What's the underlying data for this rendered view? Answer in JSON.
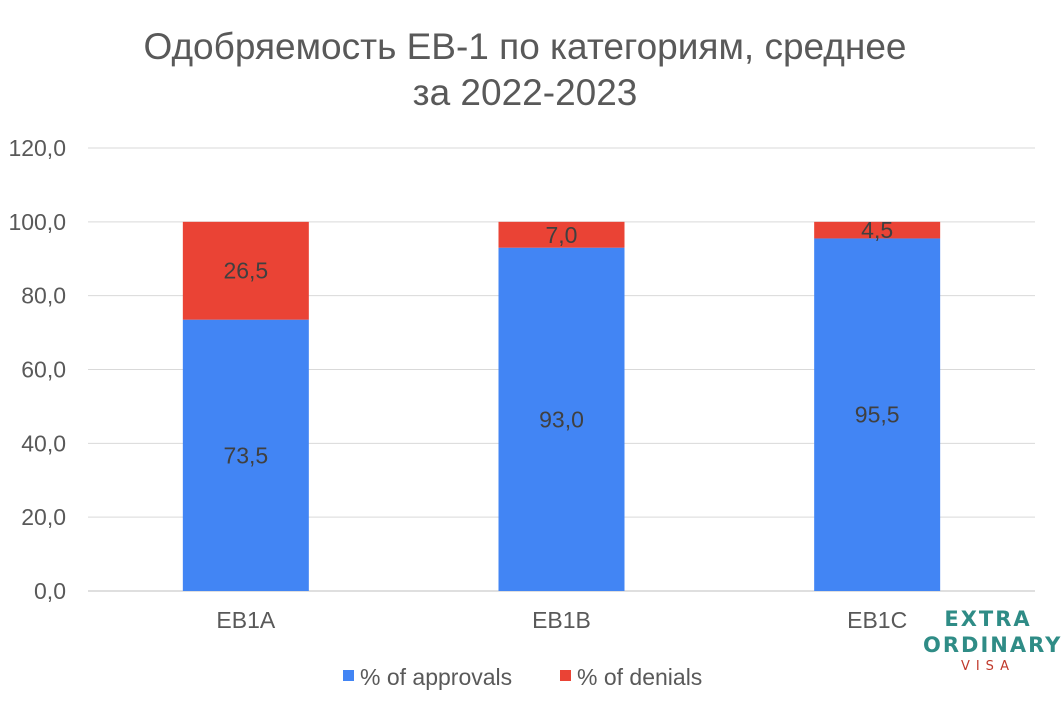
{
  "chart_data": {
    "type": "bar",
    "stacked": true,
    "title": "Одобряемость EB-1 по категориям, среднее",
    "subtitle": "за 2022-2023",
    "categories": [
      "EB1A",
      "EB1B",
      "EB1C"
    ],
    "series": [
      {
        "name": "% of approvals",
        "color": "#4285f4",
        "values": [
          73.5,
          93.0,
          95.5
        ],
        "labels": [
          "73,5",
          "93,0",
          "95,5"
        ]
      },
      {
        "name": "% of denials",
        "color": "#ea4335",
        "values": [
          26.5,
          7.0,
          4.5
        ],
        "labels": [
          "26,5",
          "7,0",
          "4,5"
        ]
      }
    ],
    "ylim": [
      0,
      120
    ],
    "yticks": [
      0,
      20,
      40,
      60,
      80,
      100,
      120
    ],
    "ytick_labels": [
      "0,0",
      "20,0",
      "40,0",
      "60,0",
      "80,0",
      "100,0",
      "120,0"
    ],
    "grid": true,
    "legend_position": "bottom"
  },
  "logo": {
    "line1": "EXTRA",
    "line2": "ORDINARY",
    "line3": "VISA"
  }
}
